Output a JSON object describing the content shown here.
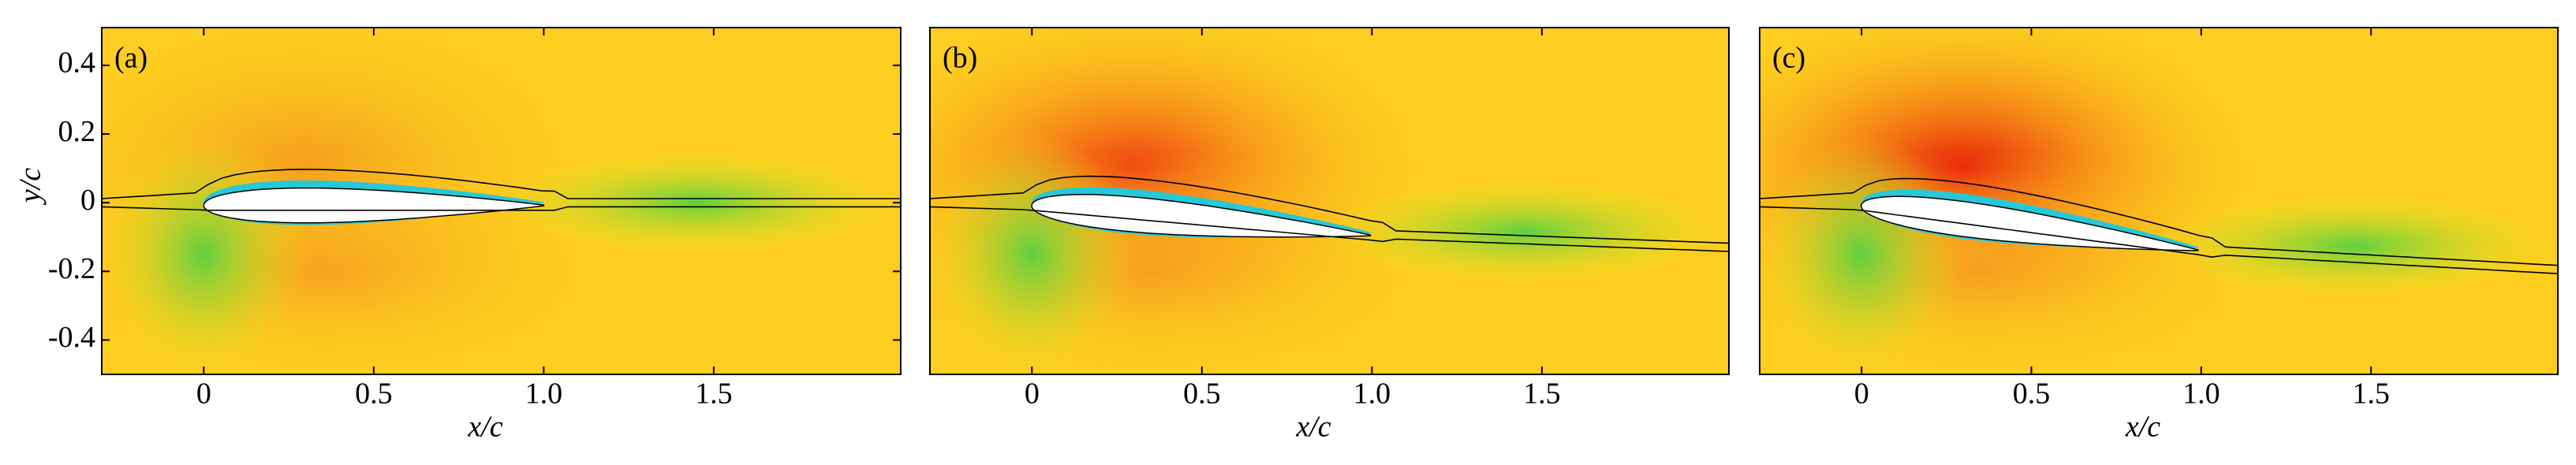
{
  "chart_data": [
    {
      "type": "contour",
      "panel_label": "(a)",
      "xlabel": "x/c",
      "ylabel": "y/c",
      "xlim": [
        -0.3,
        2.05
      ],
      "ylim": [
        -0.5,
        0.51
      ],
      "xticks": [
        0,
        0.5,
        {
          "value": 1,
          "label": "1.0"
        },
        1.5
      ],
      "yticks": [
        0.4,
        0.2,
        0,
        -0.2,
        -0.4
      ]
    },
    {
      "type": "contour",
      "panel_label": "(b)",
      "xlabel": "x/c",
      "xlim": [
        -0.3,
        2.05
      ],
      "ylim": [
        -0.5,
        0.51
      ],
      "xticks": [
        0,
        0.5,
        {
          "value": 1,
          "label": "1.0"
        },
        1.5
      ]
    },
    {
      "type": "contour",
      "panel_label": "(c)",
      "xlabel": "x/c",
      "xlim": [
        -0.3,
        2.05
      ],
      "ylim": [
        -0.5,
        0.51
      ],
      "xticks": [
        0,
        0.5,
        {
          "value": 1,
          "label": "1.0"
        },
        1.5
      ]
    }
  ]
}
